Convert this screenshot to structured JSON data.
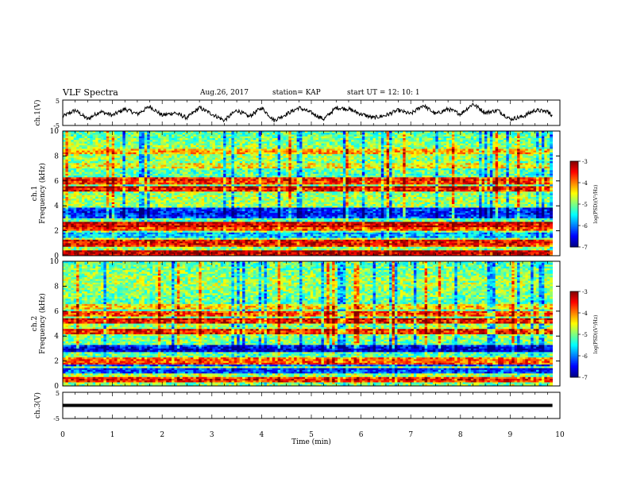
{
  "header": {
    "title": "VLF Spectra",
    "date": "Aug.26, 2017",
    "station": "station= KAP",
    "start": "start  UT =   12: 10: 1"
  },
  "chart_data": [
    {
      "type": "line",
      "panel": "ch1-waveform",
      "ylabel": "ch.1(V)",
      "ylim": [
        -5,
        5
      ],
      "yticks": [
        "5",
        "-5"
      ],
      "xlim": [
        0,
        9.85
      ],
      "series": [
        {
          "color": "#000000",
          "x": [
            0,
            0.25,
            0.5,
            0.75,
            1,
            1.25,
            1.5,
            1.75,
            2,
            2.25,
            2.5,
            2.75,
            3,
            3.25,
            3.5,
            3.75,
            4,
            4.25,
            4.5,
            4.75,
            5,
            5.25,
            5.5,
            5.75,
            6,
            6.25,
            6.5,
            6.75,
            7,
            7.25,
            7.5,
            7.75,
            8,
            8.25,
            8.5,
            8.75,
            9,
            9.25,
            9.5,
            9.75,
            9.85
          ],
          "y": [
            -1.5,
            1,
            -2.5,
            0.5,
            -1,
            1.5,
            -0.5,
            2.5,
            -1,
            0,
            -2,
            2,
            -0.5,
            -3,
            1,
            -1.5,
            2,
            -3,
            -0.5,
            2,
            0,
            -2.5,
            2,
            1.5,
            -0.5,
            -2,
            -1,
            1,
            -0.5,
            3,
            -0.5,
            1.5,
            -0.5,
            3.5,
            0,
            1,
            -2.5,
            -1.5,
            1,
            0.5,
            -1
          ]
        }
      ]
    },
    {
      "type": "heatmap",
      "panel": "ch1-spectrogram",
      "ylabel": "ch.1\nFrequency (kHz)",
      "yticks": [
        "0",
        "2",
        "4",
        "6",
        "8",
        "10"
      ],
      "ylim": [
        0,
        10
      ],
      "xlim": [
        0,
        9.85
      ],
      "colorbar": {
        "label": "log(PSD)(V²/Hz)",
        "ticks": [
          "-3",
          "-4",
          "-5",
          "-6",
          "-7"
        ],
        "range": [
          -7,
          -3
        ]
      },
      "bands": [
        {
          "f": 0.2,
          "level": -3.2
        },
        {
          "f": 1.0,
          "level": -3.5
        },
        {
          "f": 1.7,
          "level": -5.8
        },
        {
          "f": 2.2,
          "level": -3.8
        },
        {
          "f": 2.5,
          "level": -3.3
        },
        {
          "f": 3.2,
          "level": -6.3
        },
        {
          "f": 3.6,
          "level": -6.3
        },
        {
          "f": 5.4,
          "level": -3.4
        },
        {
          "f": 6.0,
          "level": -3.6
        },
        {
          "f": 7.2,
          "level": -4.4
        },
        {
          "f": 8.3,
          "level": -4.2
        }
      ]
    },
    {
      "type": "heatmap",
      "panel": "ch2-spectrogram",
      "ylabel": "ch.2\nFrequency (kHz)",
      "yticks": [
        "0",
        "2",
        "4",
        "6",
        "8",
        "10"
      ],
      "ylim": [
        0,
        10
      ],
      "xlim": [
        0,
        9.85
      ],
      "colorbar": {
        "label": "log(PSD)(V²/Hz)",
        "ticks": [
          "-3",
          "-4",
          "-5",
          "-6",
          "-7"
        ],
        "range": [
          -7,
          -3
        ]
      },
      "bands": [
        {
          "f": 0.5,
          "level": -3.6
        },
        {
          "f": 1.2,
          "level": -6.2
        },
        {
          "f": 1.8,
          "level": -6.2
        },
        {
          "f": 2.0,
          "level": -3.8
        },
        {
          "f": 3.0,
          "level": -6.5
        },
        {
          "f": 4.4,
          "level": -3.6
        },
        {
          "f": 5.2,
          "level": -3.4
        },
        {
          "f": 5.8,
          "level": -3.7
        },
        {
          "f": 6.3,
          "level": -4.3
        }
      ]
    },
    {
      "type": "line",
      "panel": "ch3-waveform",
      "ylabel": "ch.3(V)",
      "ylim": [
        -5,
        5
      ],
      "yticks": [
        "5",
        "-5"
      ],
      "xlim": [
        0,
        9.85
      ],
      "series": [
        {
          "color": "#000000",
          "x": [
            0,
            9.85
          ],
          "y": [
            0,
            0
          ]
        }
      ]
    }
  ],
  "xaxis": {
    "label": "Time  (min)",
    "ticks": [
      "0",
      "1",
      "2",
      "3",
      "4",
      "5",
      "6",
      "7",
      "8",
      "9",
      "10"
    ],
    "range": [
      0,
      10
    ]
  }
}
